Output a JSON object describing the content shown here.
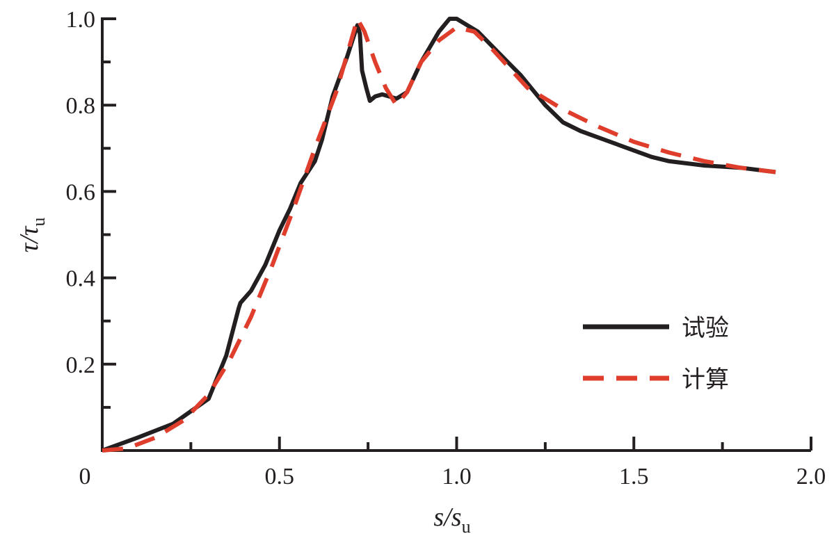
{
  "chart_data": {
    "type": "line",
    "xlabel": "s/su",
    "xlabel_main": "s/s",
    "xlabel_sub": "u",
    "ylabel": "τ/τu",
    "ylabel_main": "τ/τ",
    "ylabel_sub": "u",
    "xlim": [
      0,
      2.0
    ],
    "ylim": [
      0,
      1.0
    ],
    "x_ticks": [
      {
        "value": 0,
        "label": "0"
      },
      {
        "value": 0.5,
        "label": "0.5"
      },
      {
        "value": 1.0,
        "label": "1.0"
      },
      {
        "value": 1.5,
        "label": "1.5"
      },
      {
        "value": 2.0,
        "label": "2.0"
      }
    ],
    "y_ticks": [
      {
        "value": 0.2,
        "label": "0.2"
      },
      {
        "value": 0.4,
        "label": "0.4"
      },
      {
        "value": 0.6,
        "label": "0.6"
      },
      {
        "value": 0.8,
        "label": "0.8"
      },
      {
        "value": 1.0,
        "label": "1.0"
      }
    ],
    "grid": false,
    "legend_position": "right",
    "series": [
      {
        "name": "试验",
        "color": "#231f20",
        "dash": "solid",
        "points": [
          [
            0.0,
            0.0
          ],
          [
            0.1,
            0.03
          ],
          [
            0.2,
            0.062
          ],
          [
            0.3,
            0.12
          ],
          [
            0.35,
            0.22
          ],
          [
            0.385,
            0.33
          ],
          [
            0.39,
            0.342
          ],
          [
            0.42,
            0.37
          ],
          [
            0.46,
            0.43
          ],
          [
            0.5,
            0.51
          ],
          [
            0.53,
            0.56
          ],
          [
            0.56,
            0.62
          ],
          [
            0.6,
            0.67
          ],
          [
            0.62,
            0.72
          ],
          [
            0.65,
            0.82
          ],
          [
            0.69,
            0.91
          ],
          [
            0.71,
            0.96
          ],
          [
            0.72,
            0.985
          ],
          [
            0.727,
            0.965
          ],
          [
            0.733,
            0.88
          ],
          [
            0.745,
            0.84
          ],
          [
            0.755,
            0.81
          ],
          [
            0.77,
            0.82
          ],
          [
            0.79,
            0.825
          ],
          [
            0.81,
            0.82
          ],
          [
            0.83,
            0.815
          ],
          [
            0.86,
            0.83
          ],
          [
            0.9,
            0.9
          ],
          [
            0.95,
            0.97
          ],
          [
            0.97,
            0.99
          ],
          [
            0.98,
            1.0
          ],
          [
            1.0,
            1.0
          ],
          [
            1.02,
            0.99
          ],
          [
            1.06,
            0.97
          ],
          [
            1.12,
            0.92
          ],
          [
            1.18,
            0.87
          ],
          [
            1.25,
            0.8
          ],
          [
            1.3,
            0.76
          ],
          [
            1.35,
            0.74
          ],
          [
            1.4,
            0.725
          ],
          [
            1.45,
            0.71
          ],
          [
            1.5,
            0.695
          ],
          [
            1.55,
            0.68
          ],
          [
            1.6,
            0.67
          ],
          [
            1.7,
            0.66
          ],
          [
            1.8,
            0.655
          ],
          [
            1.9,
            0.645
          ]
        ]
      },
      {
        "name": "计算",
        "color": "#e03e2d",
        "dash": "dashed",
        "points": [
          [
            0.0,
            0.0
          ],
          [
            0.07,
            0.005
          ],
          [
            0.15,
            0.03
          ],
          [
            0.23,
            0.07
          ],
          [
            0.3,
            0.13
          ],
          [
            0.36,
            0.21
          ],
          [
            0.42,
            0.31
          ],
          [
            0.48,
            0.43
          ],
          [
            0.54,
            0.56
          ],
          [
            0.6,
            0.7
          ],
          [
            0.66,
            0.83
          ],
          [
            0.72,
            1.0
          ],
          [
            0.74,
            0.97
          ],
          [
            0.77,
            0.9
          ],
          [
            0.8,
            0.84
          ],
          [
            0.83,
            0.8
          ],
          [
            0.86,
            0.83
          ],
          [
            0.9,
            0.9
          ],
          [
            0.95,
            0.95
          ],
          [
            1.0,
            0.98
          ],
          [
            1.05,
            0.97
          ],
          [
            1.1,
            0.93
          ],
          [
            1.2,
            0.84
          ],
          [
            1.3,
            0.79
          ],
          [
            1.4,
            0.75
          ],
          [
            1.5,
            0.715
          ],
          [
            1.6,
            0.69
          ],
          [
            1.7,
            0.67
          ],
          [
            1.8,
            0.655
          ],
          [
            1.9,
            0.645
          ]
        ]
      }
    ]
  }
}
